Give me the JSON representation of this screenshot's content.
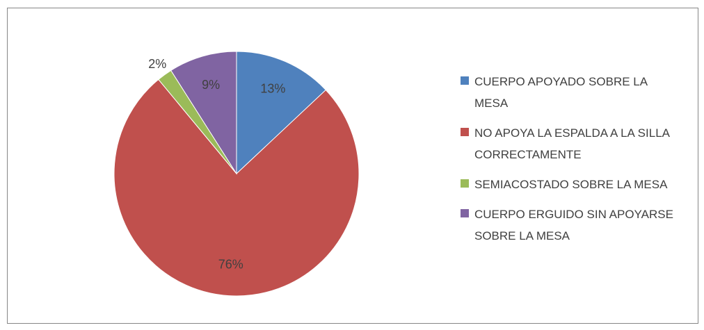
{
  "chart_data": {
    "type": "pie",
    "categories": [
      "CUERPO APOYADO SOBRE LA MESA",
      "NO APOYA LA ESPALDA A LA SILLA CORRECTAMENTE",
      "SEMIACOSTADO SOBRE LA MESA",
      "CUERPO ERGUIDO SIN APOYARSE SOBRE LA MESA"
    ],
    "values": [
      13,
      76,
      2,
      9
    ],
    "value_labels": [
      "13%",
      "76%",
      "2%",
      "9%"
    ],
    "colors": [
      "#4f81bd",
      "#c0504d",
      "#9bbb59",
      "#8064a2"
    ],
    "legend": "right"
  }
}
